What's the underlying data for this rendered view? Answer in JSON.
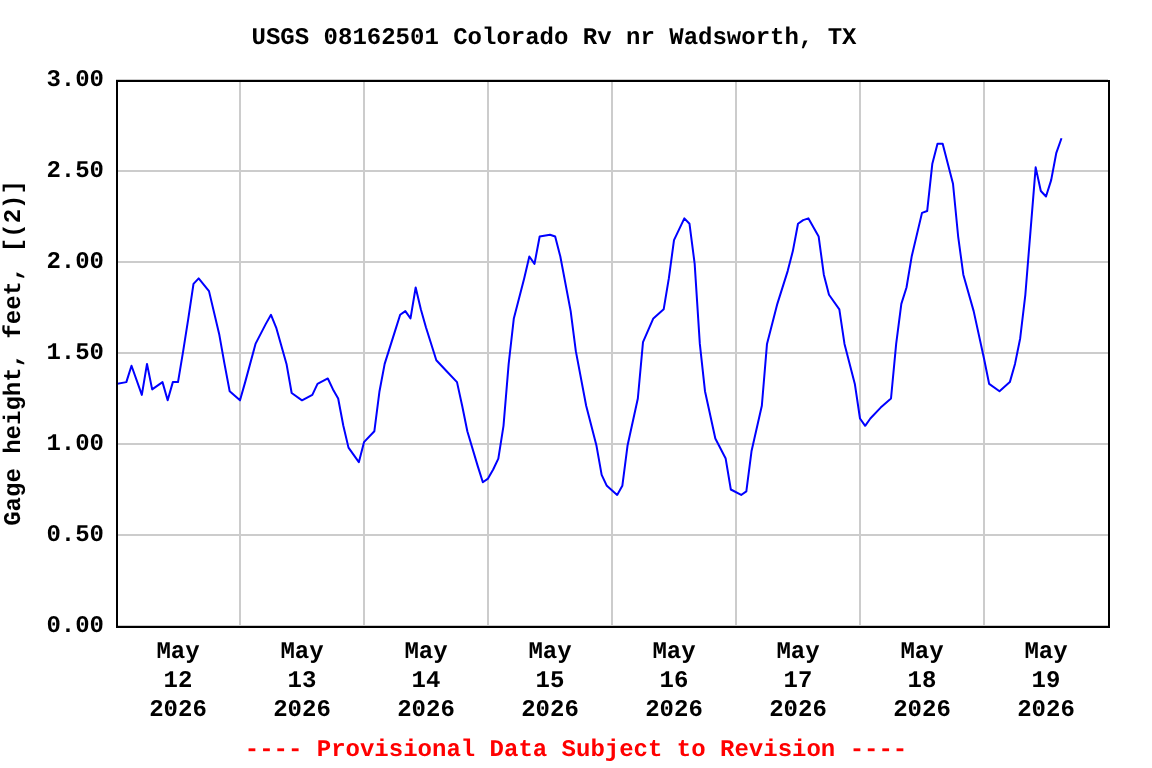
{
  "chart_data": {
    "type": "line",
    "title": "USGS 08162501 Colorado Rv nr Wadsworth, TX",
    "ylabel": "Gage height, feet, [(2)]",
    "annotations": [
      "---- Provisional Data Subject to Revision ----"
    ],
    "x": [
      "2026-05-12T00:00",
      "2026-05-12T02:00",
      "2026-05-12T03:00",
      "2026-05-12T05:00",
      "2026-05-12T06:00",
      "2026-05-12T07:00",
      "2026-05-12T09:00",
      "2026-05-12T10:00",
      "2026-05-12T11:00",
      "2026-05-12T12:00",
      "2026-05-12T13:00",
      "2026-05-12T14:00",
      "2026-05-12T15:00",
      "2026-05-12T16:00",
      "2026-05-12T18:00",
      "2026-05-12T20:00",
      "2026-05-12T21:00",
      "2026-05-12T22:00",
      "2026-05-13T00:00",
      "2026-05-13T01:00",
      "2026-05-13T03:00",
      "2026-05-13T05:00",
      "2026-05-13T06:00",
      "2026-05-13T07:00",
      "2026-05-13T09:00",
      "2026-05-13T10:00",
      "2026-05-13T12:00",
      "2026-05-13T14:00",
      "2026-05-13T15:00",
      "2026-05-13T17:00",
      "2026-05-13T18:00",
      "2026-05-13T19:00",
      "2026-05-13T20:00",
      "2026-05-13T21:00",
      "2026-05-13T23:00",
      "2026-05-14T00:00",
      "2026-05-14T02:00",
      "2026-05-14T03:00",
      "2026-05-14T04:00",
      "2026-05-14T06:00",
      "2026-05-14T07:00",
      "2026-05-14T08:00",
      "2026-05-14T09:00",
      "2026-05-14T10:00",
      "2026-05-14T11:00",
      "2026-05-14T12:00",
      "2026-05-14T14:00",
      "2026-05-14T16:00",
      "2026-05-14T18:00",
      "2026-05-14T19:00",
      "2026-05-14T20:00",
      "2026-05-14T22:00",
      "2026-05-14T23:00",
      "2026-05-15T00:00",
      "2026-05-15T01:00",
      "2026-05-15T02:00",
      "2026-05-15T03:00",
      "2026-05-15T04:00",
      "2026-05-15T05:00",
      "2026-05-15T07:00",
      "2026-05-15T08:00",
      "2026-05-15T09:00",
      "2026-05-15T10:00",
      "2026-05-15T12:00",
      "2026-05-15T13:00",
      "2026-05-15T14:00",
      "2026-05-15T16:00",
      "2026-05-15T17:00",
      "2026-05-15T19:00",
      "2026-05-15T21:00",
      "2026-05-15T22:00",
      "2026-05-15T23:00",
      "2026-05-16T01:00",
      "2026-05-16T02:00",
      "2026-05-16T03:00",
      "2026-05-16T05:00",
      "2026-05-16T06:00",
      "2026-05-16T08:00",
      "2026-05-16T10:00",
      "2026-05-16T11:00",
      "2026-05-16T12:00",
      "2026-05-16T14:00",
      "2026-05-16T15:00",
      "2026-05-16T16:00",
      "2026-05-16T17:00",
      "2026-05-16T18:00",
      "2026-05-16T20:00",
      "2026-05-16T22:00",
      "2026-05-16T23:00",
      "2026-05-17T01:00",
      "2026-05-17T02:00",
      "2026-05-17T03:00",
      "2026-05-17T05:00",
      "2026-05-17T06:00",
      "2026-05-17T08:00",
      "2026-05-17T10:00",
      "2026-05-17T11:00",
      "2026-05-17T12:00",
      "2026-05-17T13:00",
      "2026-05-17T14:00",
      "2026-05-17T16:00",
      "2026-05-17T17:00",
      "2026-05-17T18:00",
      "2026-05-17T20:00",
      "2026-05-17T21:00",
      "2026-05-17T23:00",
      "2026-05-18T00:00",
      "2026-05-18T01:00",
      "2026-05-18T02:00",
      "2026-05-18T04:00",
      "2026-05-18T06:00",
      "2026-05-18T07:00",
      "2026-05-18T08:00",
      "2026-05-18T09:00",
      "2026-05-18T10:00",
      "2026-05-18T12:00",
      "2026-05-18T13:00",
      "2026-05-18T14:00",
      "2026-05-18T15:00",
      "2026-05-18T16:00",
      "2026-05-18T18:00",
      "2026-05-18T19:00",
      "2026-05-18T20:00",
      "2026-05-18T22:00",
      "2026-05-19T00:00",
      "2026-05-19T01:00",
      "2026-05-19T03:00",
      "2026-05-19T05:00",
      "2026-05-19T06:00",
      "2026-05-19T07:00",
      "2026-05-19T08:00",
      "2026-05-19T09:00",
      "2026-05-19T10:00",
      "2026-05-19T11:00",
      "2026-05-19T12:00",
      "2026-05-19T13:00",
      "2026-05-19T14:00",
      "2026-05-19T15:00"
    ],
    "series": [
      {
        "color": "#0000ff",
        "values": [
          1.33,
          1.34,
          1.43,
          1.27,
          1.44,
          1.3,
          1.34,
          1.24,
          1.34,
          1.34,
          1.51,
          1.69,
          1.88,
          1.91,
          1.84,
          1.6,
          1.44,
          1.29,
          1.24,
          1.34,
          1.55,
          1.66,
          1.71,
          1.64,
          1.44,
          1.28,
          1.24,
          1.27,
          1.33,
          1.36,
          1.3,
          1.25,
          1.1,
          0.98,
          0.9,
          1.01,
          1.07,
          1.29,
          1.44,
          1.62,
          1.71,
          1.73,
          1.69,
          1.86,
          1.74,
          1.64,
          1.46,
          1.4,
          1.34,
          1.21,
          1.07,
          0.88,
          0.79,
          0.81,
          0.86,
          0.92,
          1.1,
          1.44,
          1.69,
          1.91,
          2.03,
          1.99,
          2.14,
          2.15,
          2.14,
          2.03,
          1.73,
          1.51,
          1.21,
          0.99,
          0.83,
          0.77,
          0.72,
          0.77,
          0.99,
          1.25,
          1.56,
          1.69,
          1.74,
          1.91,
          2.12,
          2.24,
          2.21,
          1.99,
          1.55,
          1.29,
          1.03,
          0.92,
          0.75,
          0.72,
          0.74,
          0.96,
          1.21,
          1.55,
          1.77,
          1.95,
          2.06,
          2.21,
          2.23,
          2.24,
          2.14,
          1.93,
          1.82,
          1.74,
          1.55,
          1.33,
          1.14,
          1.1,
          1.14,
          1.2,
          1.25,
          1.55,
          1.77,
          1.86,
          2.03,
          2.27,
          2.28,
          2.54,
          2.65,
          2.65,
          2.43,
          2.14,
          1.93,
          1.73,
          1.47,
          1.33,
          1.29,
          1.34,
          1.44,
          1.58,
          1.82,
          2.17,
          2.52,
          2.39,
          2.36,
          2.45,
          2.6,
          2.68
        ]
      }
    ],
    "xlim": [
      "2026-05-12T00:00",
      "2026-05-20T00:00"
    ],
    "xticks": [
      {
        "value": "2026-05-12T12:00",
        "label": "May\n12\n2026"
      },
      {
        "value": "2026-05-13T00:00",
        "label": null
      },
      {
        "value": "2026-05-13T12:00",
        "label": "May\n13\n2026"
      },
      {
        "value": "2026-05-14T00:00",
        "label": null
      },
      {
        "value": "2026-05-14T12:00",
        "label": "May\n14\n2026"
      },
      {
        "value": "2026-05-15T00:00",
        "label": null
      },
      {
        "value": "2026-05-15T12:00",
        "label": "May\n15\n2026"
      },
      {
        "value": "2026-05-16T00:00",
        "label": null
      },
      {
        "value": "2026-05-16T12:00",
        "label": "May\n16\n2026"
      },
      {
        "value": "2026-05-17T00:00",
        "label": null
      },
      {
        "value": "2026-05-17T12:00",
        "label": "May\n17\n2026"
      },
      {
        "value": "2026-05-18T00:00",
        "label": null
      },
      {
        "value": "2026-05-18T12:00",
        "label": "May\n18\n2026"
      },
      {
        "value": "2026-05-19T00:00",
        "label": null
      },
      {
        "value": "2026-05-19T12:00",
        "label": "May\n19\n2026"
      }
    ],
    "ylim": [
      0,
      3
    ],
    "yticks": [
      {
        "value": 0,
        "label": "0.00"
      },
      {
        "value": 0.5,
        "label": "0.50"
      },
      {
        "value": 1,
        "label": "1.00"
      },
      {
        "value": 1.5,
        "label": "1.50"
      },
      {
        "value": 2,
        "label": "2.00"
      },
      {
        "value": 2.5,
        "label": "2.50"
      },
      {
        "value": 3,
        "label": "3.00"
      }
    ],
    "grid": true,
    "line_style": "solid"
  }
}
